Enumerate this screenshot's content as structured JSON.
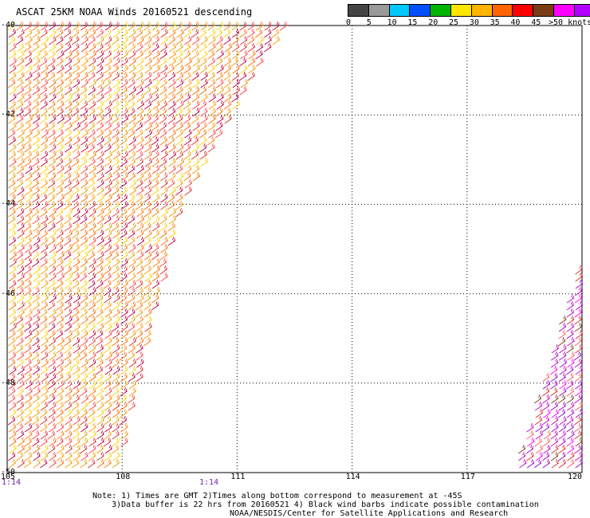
{
  "title": "ASCAT 25KM NOAA Winds 20160521 descending",
  "legend": {
    "colors": [
      "#444444",
      "#9a9a9a",
      "#00c8ff",
      "#0050ff",
      "#00b400",
      "#ffe600",
      "#ffb400",
      "#ff6400",
      "#ff0000",
      "#7a3c14",
      "#ff00ff",
      "#b400ff",
      "#3c0064"
    ],
    "labels": [
      "0",
      "5",
      "10",
      "15",
      "20",
      "25",
      "30",
      "35",
      "40",
      "45",
      ">50 knots"
    ]
  },
  "y_ticks": [
    "-40",
    "-42",
    "-44",
    "-46",
    "-48",
    "-50"
  ],
  "x_ticks": [
    "105",
    "108",
    "111",
    "114",
    "117",
    "120"
  ],
  "time_labels": [
    "1:14",
    "1:14"
  ],
  "notes": [
    "Note: 1) Times are GMT 2)Times along bottom correspond to measurement at -45S",
    "3)Data buffer is 22 hrs from 20160521 4) Black wind barbs indicate possible contamination",
    "NOAA/NESDIS/Center for Satellite Applications and Research"
  ],
  "chart_data": {
    "type": "scatter",
    "title": "ASCAT 25KM NOAA Winds 20160521 descending",
    "xlabel": "",
    "ylabel": "",
    "xlim": [
      105,
      120
    ],
    "ylim": [
      -50,
      -40
    ],
    "grid": true,
    "legend_placement": "top-right",
    "legend_unit": "knots",
    "swaths": [
      {
        "corners_lon_lat": [
          [
            105,
            -40
          ],
          [
            112.2,
            -40
          ],
          [
            109.5,
            -44
          ],
          [
            107.8,
            -50
          ],
          [
            105,
            -50
          ]
        ],
        "predominant_speed_knots": [
          25,
          35
        ]
      },
      {
        "corners_lon_lat": [
          [
            120,
            -45
          ],
          [
            120,
            -50
          ],
          [
            118.2,
            -50
          ]
        ],
        "predominant_speed_knots": [
          35,
          50
        ]
      }
    ]
  }
}
